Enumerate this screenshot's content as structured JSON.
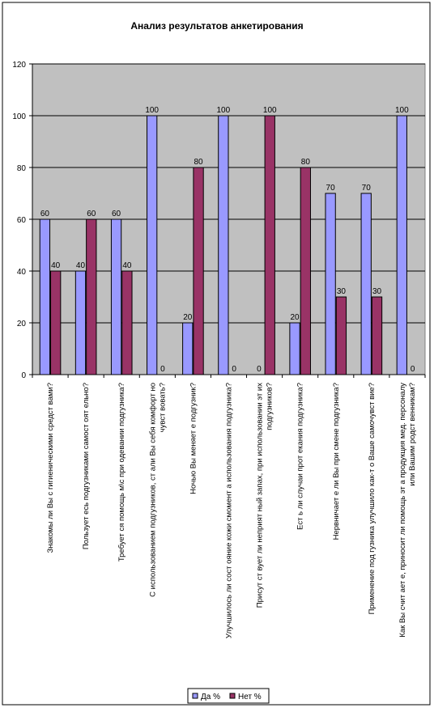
{
  "chart_data": {
    "type": "bar",
    "title": "Анализ результатов анкетирования",
    "xlabel": "",
    "ylabel": "",
    "ylim": [
      0,
      120
    ],
    "yticks": [
      0,
      20,
      40,
      60,
      80,
      100,
      120
    ],
    "grid": true,
    "legend_position": "bottom",
    "categories": [
      [
        "Знакомы ли Вы с гигиеническими средст вами?"
      ],
      [
        "Пользует есь подгузниками самост оят ельно?"
      ],
      [
        "Требует ся помощь м\\с при одевании подгузника?"
      ],
      [
        "С использованием подгузников, ст али Вы себя комфорт но",
        "чувст вовать?"
      ],
      [
        "Ночью Вы меняет е подгузник?"
      ],
      [
        "Улучшилось ли сост ояние кожи смомент а использования подгузника?"
      ],
      [
        "Присут ст вует  ли неприят ный запах, при использовании эт их",
        "подгузников?"
      ],
      [
        "Ест ь ли случаи прот екания подгузника?"
      ],
      [
        "Нервничает е ли Вы при смене подгузника?"
      ],
      [
        "Применение под гузника улучшило как-т о Ваше самочувст вие?"
      ],
      [
        "Как Вы счит ает е, приносит  ли помощь эт а продукция мед. персоналу",
        "или Вашим родст венникам?"
      ]
    ],
    "series": [
      {
        "name": "Да %",
        "color": "#9999ff",
        "values": [
          60,
          40,
          60,
          100,
          20,
          100,
          0,
          20,
          70,
          70,
          100
        ]
      },
      {
        "name": "Нет  %",
        "color": "#993366",
        "values": [
          40,
          60,
          40,
          0,
          80,
          0,
          100,
          80,
          30,
          30,
          0
        ]
      }
    ]
  }
}
